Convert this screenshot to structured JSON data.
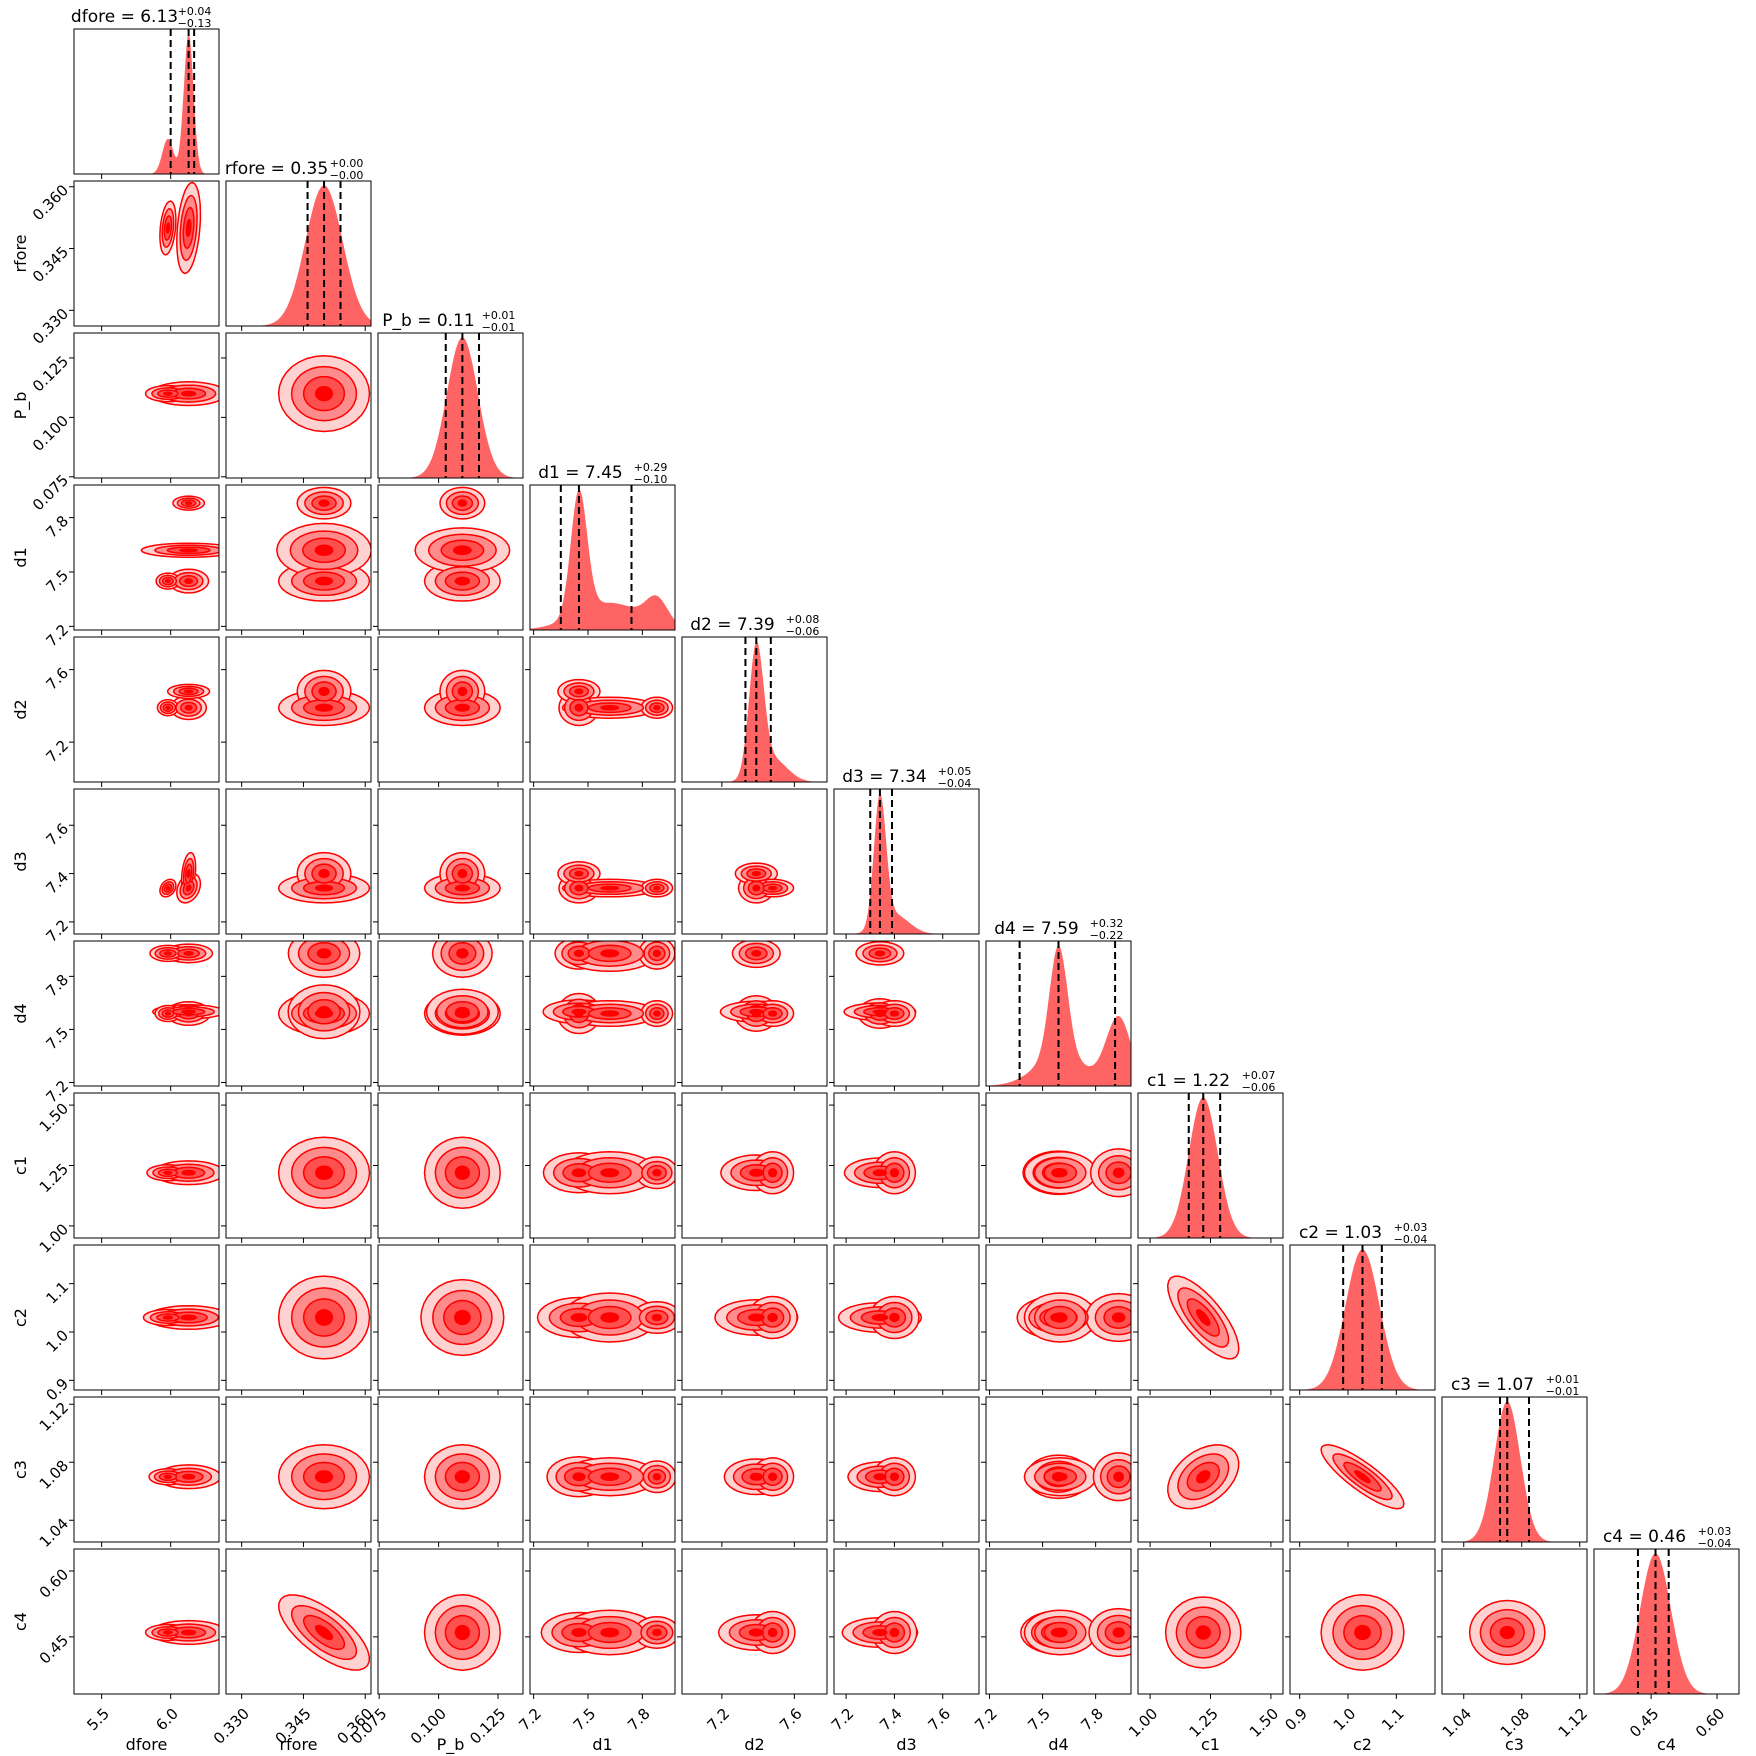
{
  "chart_data": {
    "type": "corner",
    "colors": {
      "fill_light": "#ffd2d2",
      "fill_mid": "#ff8c8c",
      "fill_dark": "#ff5050",
      "fill_core": "#ff0000",
      "line": "#ff0000",
      "hist_fill": "#ff6464",
      "quantile_line": "#000000"
    },
    "parameters": [
      {
        "name": "dfore",
        "xlabel": "dfore",
        "ylabel": "",
        "median": 6.13,
        "q_lo": 6.0,
        "q_hi": 6.17,
        "title_main": "dfore = 6.13",
        "title_plus": "+0.04",
        "title_minus": "−0.13",
        "range": [
          5.3,
          6.35
        ],
        "ticks": [
          5.5,
          6.0
        ],
        "tick_labels": [
          "5.5",
          "6.0"
        ],
        "sigma": 0.035,
        "extra_modes": [
          {
            "mu": 5.98,
            "sigma": 0.04,
            "w": 0.25
          }
        ]
      },
      {
        "name": "rfore",
        "xlabel": "rfore",
        "ylabel": "rfore",
        "median": 0.35,
        "q_lo": 0.346,
        "q_hi": 0.354,
        "title_main": "rfore = 0.35",
        "title_plus": "+0.00",
        "title_minus": "−0.00",
        "range": [
          0.3262,
          0.3614
        ],
        "ticks": [
          0.33,
          0.345,
          0.36
        ],
        "tick_labels": [
          "0.330",
          "0.345",
          "0.360"
        ],
        "sigma": 0.0045,
        "extra_modes": []
      },
      {
        "name": "P_b",
        "xlabel": "P_b",
        "ylabel": "P_b",
        "median": 0.11,
        "q_lo": 0.103,
        "q_hi": 0.117,
        "title_main": "P_b = 0.11",
        "title_plus": "+0.01",
        "title_minus": "−0.01",
        "range": [
          0.0745,
          0.1355
        ],
        "ticks": [
          0.075,
          0.1,
          0.125
        ],
        "tick_labels": [
          "0.075",
          "0.100",
          "0.125"
        ],
        "sigma": 0.0065,
        "extra_modes": []
      },
      {
        "name": "d1",
        "xlabel": "d1",
        "ylabel": "d1",
        "median": 7.45,
        "q_lo": 7.35,
        "q_hi": 7.74,
        "title_main": "d1 = 7.45",
        "title_plus": "+0.29",
        "title_minus": "−0.10",
        "range": [
          7.18,
          7.98
        ],
        "ticks": [
          7.2,
          7.5,
          7.8
        ],
        "tick_labels": [
          "7.2",
          "7.5",
          "7.8"
        ],
        "sigma": 0.045,
        "extra_modes": [
          {
            "mu": 7.62,
            "sigma": 0.18,
            "w": 0.22
          },
          {
            "mu": 7.88,
            "sigma": 0.06,
            "w": 0.2
          }
        ]
      },
      {
        "name": "d2",
        "xlabel": "d2",
        "ylabel": "d2",
        "median": 7.39,
        "q_lo": 7.33,
        "q_hi": 7.47,
        "title_main": "d2 = 7.39",
        "title_plus": "+0.08",
        "title_minus": "−0.06",
        "range": [
          6.98,
          7.78
        ],
        "ticks": [
          7.2,
          7.6
        ],
        "tick_labels": [
          "7.2",
          "7.6"
        ],
        "sigma": 0.04,
        "extra_modes": [
          {
            "mu": 7.48,
            "sigma": 0.08,
            "w": 0.18
          }
        ]
      },
      {
        "name": "d3",
        "xlabel": "d3",
        "ylabel": "d3",
        "median": 7.34,
        "q_lo": 7.3,
        "q_hi": 7.39,
        "title_main": "d3 = 7.34",
        "title_plus": "+0.05",
        "title_minus": "−0.04",
        "range": [
          7.15,
          7.75
        ],
        "ticks": [
          7.2,
          7.4,
          7.6
        ],
        "tick_labels": [
          "7.2",
          "7.4",
          "7.6"
        ],
        "sigma": 0.025,
        "extra_modes": [
          {
            "mu": 7.4,
            "sigma": 0.06,
            "w": 0.15
          }
        ]
      },
      {
        "name": "d4",
        "xlabel": "d4",
        "ylabel": "d4",
        "median": 7.59,
        "q_lo": 7.37,
        "q_hi": 7.91,
        "title_main": "d4 = 7.59",
        "title_plus": "+0.32",
        "title_minus": "−0.22",
        "range": [
          7.18,
          8.0
        ],
        "ticks": [
          7.2,
          7.5,
          7.8
        ],
        "tick_labels": [
          "7.2",
          "7.5",
          "7.8"
        ],
        "sigma": 0.05,
        "extra_modes": [
          {
            "mu": 7.6,
            "sigma": 0.14,
            "w": 0.28
          },
          {
            "mu": 7.93,
            "sigma": 0.07,
            "w": 0.62
          }
        ]
      },
      {
        "name": "c1",
        "xlabel": "c1",
        "ylabel": "c1",
        "median": 1.22,
        "q_lo": 1.16,
        "q_hi": 1.29,
        "title_main": "c1 = 1.22",
        "title_plus": "+0.07",
        "title_minus": "−0.06",
        "range": [
          0.95,
          1.55
        ],
        "ticks": [
          1.0,
          1.25,
          1.5
        ],
        "tick_labels": [
          "1.00",
          "1.25",
          "1.50"
        ],
        "sigma": 0.06,
        "extra_modes": []
      },
      {
        "name": "c2",
        "xlabel": "c2",
        "ylabel": "c2",
        "median": 1.03,
        "q_lo": 0.99,
        "q_hi": 1.07,
        "title_main": "c2 = 1.03",
        "title_plus": "+0.03",
        "title_minus": "−0.04",
        "range": [
          0.88,
          1.18
        ],
        "ticks": [
          0.9,
          1.0,
          1.1
        ],
        "tick_labels": [
          "0.9",
          "1.0",
          "1.1"
        ],
        "sigma": 0.035,
        "extra_modes": []
      },
      {
        "name": "c3",
        "xlabel": "c3",
        "ylabel": "c3",
        "median": 1.07,
        "q_lo": 1.065,
        "q_hi": 1.085,
        "title_main": "c3 = 1.07",
        "title_plus": "+0.01",
        "title_minus": "−0.01",
        "range": [
          1.025,
          1.125
        ],
        "ticks": [
          1.04,
          1.08,
          1.12
        ],
        "tick_labels": [
          "1.04",
          "1.08",
          "1.12"
        ],
        "sigma": 0.009,
        "extra_modes": []
      },
      {
        "name": "c4",
        "xlabel": "c4",
        "ylabel": "c4",
        "median": 0.46,
        "q_lo": 0.42,
        "q_hi": 0.49,
        "title_main": "c4 = 0.46",
        "title_plus": "+0.03",
        "title_minus": "−0.04",
        "range": [
          0.32,
          0.65
        ],
        "ticks": [
          0.45,
          0.6
        ],
        "tick_labels": [
          "0.45",
          "0.60"
        ],
        "sigma": 0.035,
        "extra_modes": []
      }
    ],
    "correlations": [
      {
        "pair": [
          "c1",
          "c2"
        ],
        "rho": -0.75
      },
      {
        "pair": [
          "c2",
          "c3"
        ],
        "rho": -0.85
      },
      {
        "pair": [
          "rfore",
          "c4"
        ],
        "rho": -0.7
      },
      {
        "pair": [
          "c1",
          "c3"
        ],
        "rho": 0.4
      },
      {
        "pair": [
          "dfore",
          "rfore"
        ],
        "rho": 0.3
      },
      {
        "pair": [
          "dfore",
          "d3"
        ],
        "rho": 0.3
      }
    ]
  }
}
